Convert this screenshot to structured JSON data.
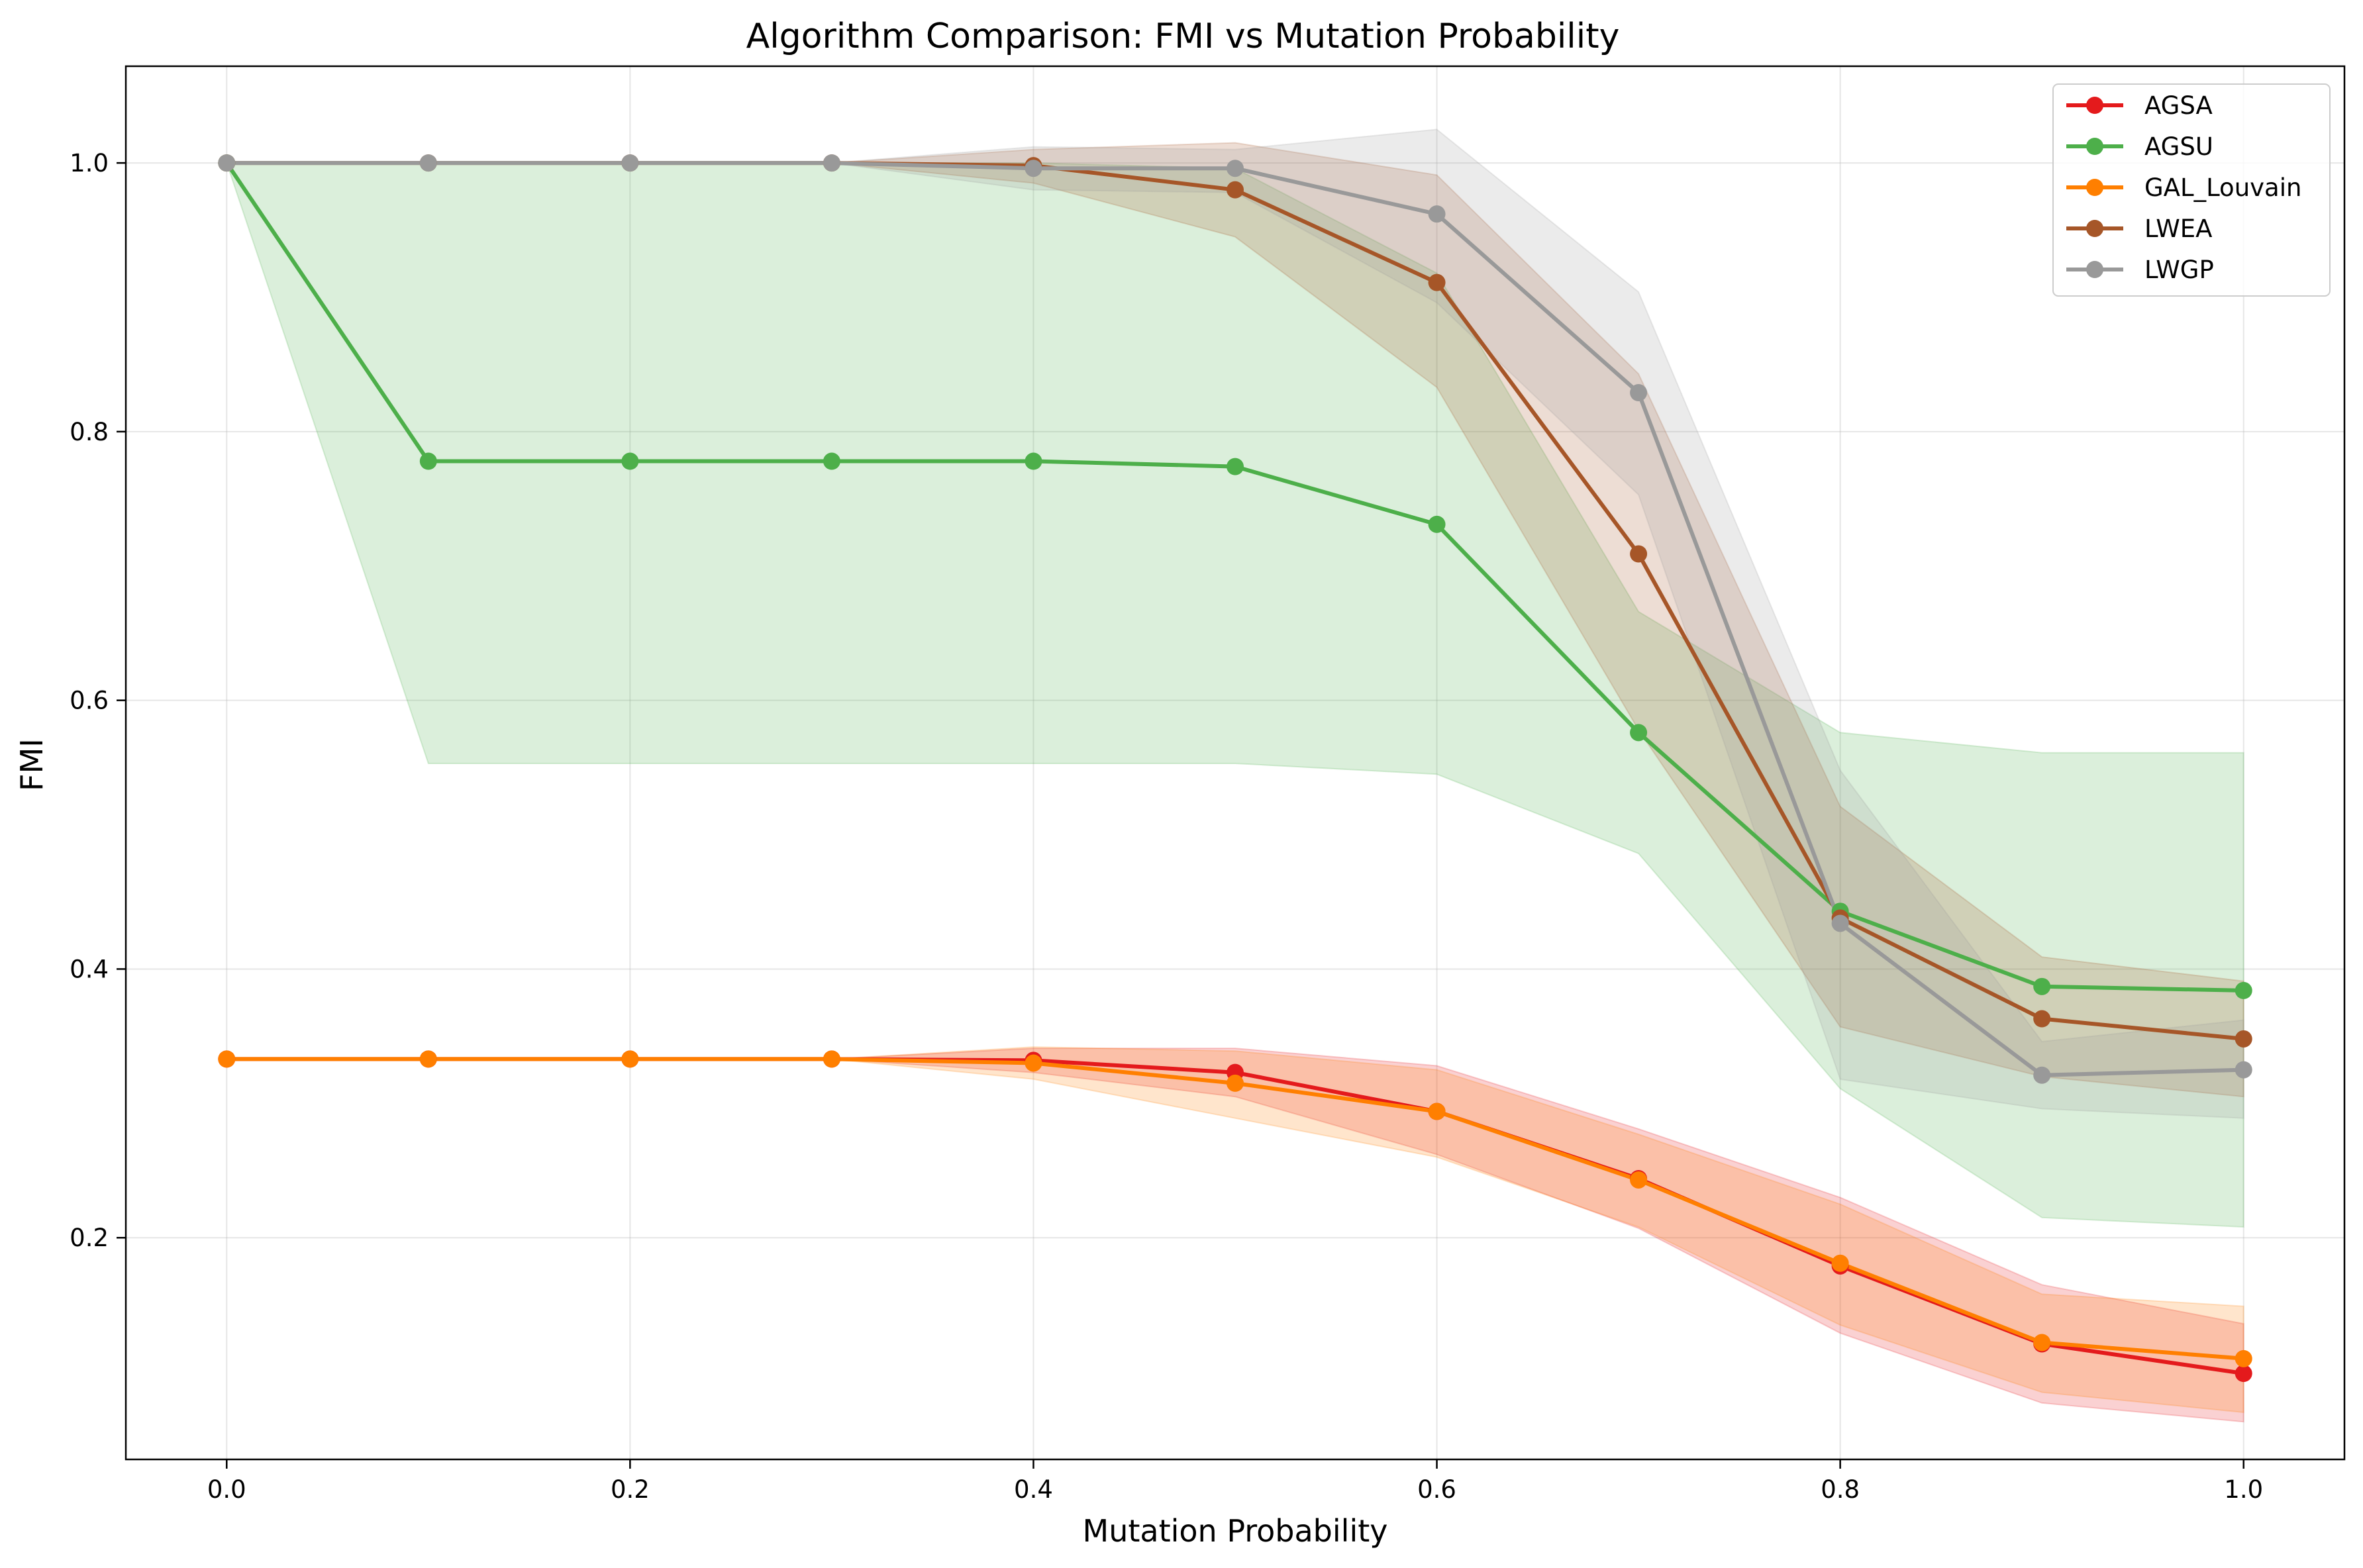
{
  "chart_data": {
    "type": "line",
    "title": "Algorithm Comparison: FMI vs Mutation Probability",
    "xlabel": "Mutation Probability",
    "ylabel": "FMI",
    "xlim": [
      -0.05,
      1.05
    ],
    "ylim": [
      0.035,
      1.072
    ],
    "x_ticks": [
      "0.0",
      "0.2",
      "0.4",
      "0.6",
      "0.8",
      "1.0"
    ],
    "y_ticks": [
      "0.2",
      "0.4",
      "0.6",
      "0.8",
      "1.0"
    ],
    "grid": true,
    "legend_position": "top-right",
    "x": [
      0.0,
      0.1,
      0.2,
      0.3,
      0.4,
      0.5,
      0.6,
      0.7,
      0.8,
      0.9,
      1.0
    ],
    "series": [
      {
        "name": "AGSA",
        "color": "#e41a1c",
        "values": [
          0.333,
          0.333,
          0.333,
          0.333,
          0.332,
          0.323,
          0.294,
          0.244,
          0.179,
          0.121,
          0.099
        ],
        "lower": [
          0.333,
          0.333,
          0.333,
          0.333,
          0.323,
          0.305,
          0.262,
          0.207,
          0.129,
          0.077,
          0.063
        ],
        "upper": [
          0.333,
          0.333,
          0.333,
          0.333,
          0.341,
          0.341,
          0.328,
          0.281,
          0.23,
          0.165,
          0.136
        ]
      },
      {
        "name": "AGSU",
        "color": "#4daf4a",
        "values": [
          1.0,
          0.778,
          0.778,
          0.778,
          0.778,
          0.774,
          0.731,
          0.576,
          0.443,
          0.387,
          0.384
        ],
        "lower": [
          1.0,
          0.553,
          0.553,
          0.553,
          0.553,
          0.553,
          0.545,
          0.486,
          0.311,
          0.215,
          0.208
        ],
        "upper": [
          1.0,
          1.0,
          1.0,
          1.0,
          1.0,
          0.996,
          0.918,
          0.666,
          0.576,
          0.561,
          0.561
        ]
      },
      {
        "name": "GAL_Louvain",
        "color": "#ff7f00",
        "values": [
          0.333,
          0.333,
          0.333,
          0.333,
          0.33,
          0.315,
          0.294,
          0.243,
          0.181,
          0.122,
          0.11
        ],
        "lower": [
          0.333,
          0.333,
          0.333,
          0.333,
          0.318,
          0.289,
          0.26,
          0.208,
          0.135,
          0.085,
          0.07
        ],
        "upper": [
          0.333,
          0.333,
          0.333,
          0.333,
          0.342,
          0.339,
          0.325,
          0.277,
          0.225,
          0.158,
          0.149
        ]
      },
      {
        "name": "LWEA",
        "color": "#a65628",
        "values": [
          1.0,
          1.0,
          1.0,
          1.0,
          0.998,
          0.98,
          0.911,
          0.709,
          0.438,
          0.363,
          0.348
        ],
        "lower": [
          1.0,
          1.0,
          1.0,
          1.0,
          0.985,
          0.945,
          0.833,
          0.578,
          0.357,
          0.32,
          0.305
        ],
        "upper": [
          1.0,
          1.0,
          1.0,
          1.0,
          1.01,
          1.015,
          0.991,
          0.843,
          0.521,
          0.409,
          0.391
        ]
      },
      {
        "name": "LWGP",
        "color": "#999999",
        "values": [
          1.0,
          1.0,
          1.0,
          1.0,
          0.996,
          0.996,
          0.962,
          0.829,
          0.434,
          0.321,
          0.325
        ],
        "lower": [
          1.0,
          1.0,
          1.0,
          1.0,
          0.98,
          0.978,
          0.896,
          0.753,
          0.318,
          0.296,
          0.289
        ],
        "upper": [
          1.0,
          1.0,
          1.0,
          1.0,
          1.012,
          1.01,
          1.025,
          0.904,
          0.548,
          0.346,
          0.362
        ]
      }
    ]
  }
}
